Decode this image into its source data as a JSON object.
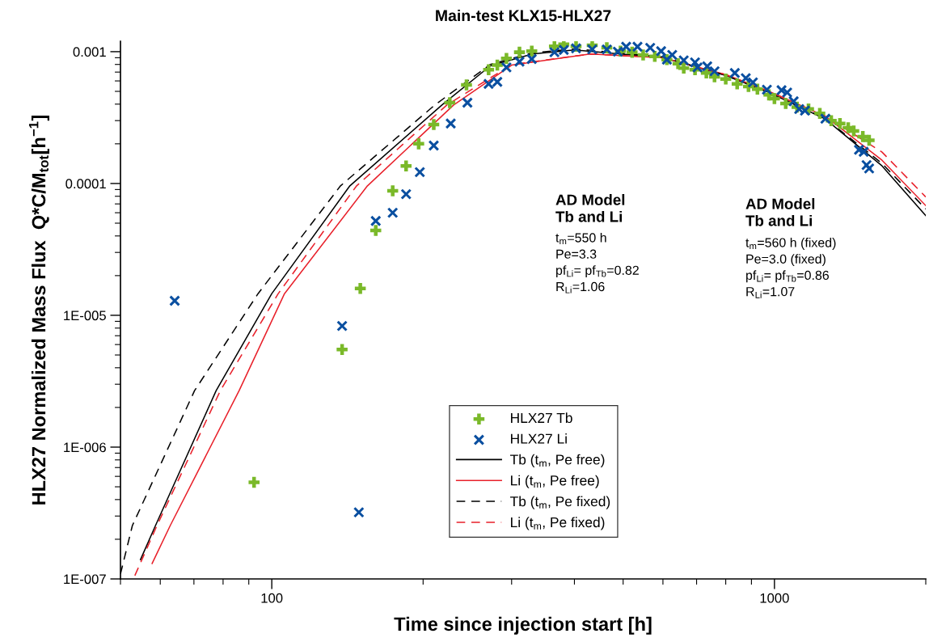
{
  "chart_data": {
    "type": "scatter",
    "title": "Main-test KLX15-HLX27",
    "xlabel": "Time since injection start [h]",
    "ylabel": "HLX27 Normalized Mass Flux  Q*C/M$_{tot}$[h$^{−1}$]",
    "log": "xy",
    "grid": false,
    "legend": "bottom",
    "xlim": [
      50,
      2000
    ],
    "xticks": [
      100,
      1000
    ],
    "ylim": [
      1e-07,
      0.0012
    ],
    "yticks": [
      {
        "value": 1e-07,
        "label": "1E-007"
      },
      {
        "value": 1e-06,
        "label": "1E-006"
      },
      {
        "value": 1e-05,
        "label": "1E-005"
      },
      {
        "value": 0.0001,
        "label": "0.0001"
      },
      {
        "value": 0.001,
        "label": "0.001"
      }
    ],
    "annotations": [
      "AD Model\nTb and Li",
      "t$_{m}$=550 h\nPe=3.3\npf$_{Li}$= pf$_{Tb}$=0.82\nR$_{Li}$=1.06",
      "AD Model\nTb and Li",
      "t$_{m}$=560 h (fixed)\nPe=3.0 (fixed)\npf$_{Li}$= pf$_{Tb}$=0.86\nR$_{Li}$=1.07"
    ],
    "series": [
      {
        "name": "HLX27 Tb",
        "marker": "plus",
        "color": "#7ab929",
        "x": [
          92.2,
          138,
          150,
          161,
          174,
          185,
          196,
          210,
          226,
          244,
          270,
          281,
          293,
          311,
          329,
          365,
          381,
          403,
          434,
          464,
          494,
          521,
          548,
          578,
          611,
          643,
          660,
          695,
          732,
          760,
          800,
          843,
          888,
          925,
          975,
          1000,
          1053,
          1109,
          1169,
          1231,
          1297,
          1350,
          1402,
          1438,
          1499,
          1543
        ],
        "values": [
          5.4e-07,
          5.5e-06,
          1.6e-05,
          4.4e-05,
          8.8e-05,
          0.000136,
          0.0002,
          0.00028,
          0.00041,
          0.00056,
          0.00073,
          0.00079,
          0.00089,
          0.00099,
          0.00101,
          0.0011,
          0.00114,
          0.0011,
          0.00112,
          0.00107,
          0.00101,
          0.00099,
          0.000945,
          0.00092,
          0.00087,
          0.00081,
          0.00075,
          0.00073,
          0.00069,
          0.000645,
          0.00062,
          0.00057,
          0.000545,
          0.00052,
          0.00047,
          0.00044,
          0.000405,
          0.00038,
          0.000367,
          0.00034,
          0.0003,
          0.000285,
          0.000265,
          0.00025,
          0.000227,
          0.000213
        ]
      },
      {
        "name": "HLX27 Li",
        "marker": "cross",
        "color": "#0a4fa0",
        "x": [
          64.1,
          138,
          149,
          161,
          174,
          185,
          197,
          210,
          227,
          245,
          270,
          281,
          293,
          311,
          329,
          365,
          381,
          403,
          434,
          464,
          488,
          507,
          534,
          566,
          595,
          611,
          626,
          660,
          695,
          703,
          735,
          760,
          834,
          877,
          906,
          966,
          1033,
          1060,
          1092,
          1120,
          1150,
          1263,
          1473,
          1505,
          1525,
          1543
        ],
        "values": [
          1.29e-05,
          8.3e-06,
          3.2e-07,
          5.2e-05,
          6e-05,
          8.3e-05,
          0.000122,
          0.000194,
          0.000285,
          0.00041,
          0.00057,
          0.00059,
          0.00076,
          0.00084,
          0.00088,
          0.00099,
          0.00103,
          0.00106,
          0.00104,
          0.00104,
          0.001,
          0.00109,
          0.00109,
          0.00107,
          0.00101,
          0.00087,
          0.000945,
          0.00086,
          0.00083,
          0.00076,
          0.000775,
          0.00071,
          0.00069,
          0.00063,
          0.000585,
          0.000515,
          0.00051,
          0.00049,
          0.00042,
          0.000367,
          0.000357,
          0.00031,
          0.00018,
          0.000174,
          0.000138,
          0.00013
        ]
      },
      {
        "name": "Tb (t$_{m}$, Pe free)",
        "type": "line",
        "line_style": "solid",
        "color": "#000000",
        "x": [
          54.8,
          58.7,
          77.5,
          100,
          143,
          218,
          272,
          330,
          400,
          600,
          800,
          975,
          1263,
          1637,
          2000
        ],
        "values": [
          1.4e-07,
          2.54e-07,
          2.68e-06,
          1.46e-05,
          9.6e-05,
          0.000394,
          0.00078,
          0.00096,
          0.00103,
          0.0009,
          0.00066,
          0.00049,
          0.000308,
          0.000136,
          5.7e-05
        ]
      },
      {
        "name": "Li (t$_{m}$, Pe free)",
        "type": "line",
        "line_style": "solid",
        "color": "#e8202a",
        "x": [
          57.8,
          62.8,
          86.1,
          106,
          155,
          230,
          300,
          430,
          600,
          800,
          975,
          1263,
          1637,
          2000
        ],
        "values": [
          1.31e-07,
          2.54e-07,
          2.68e-06,
          1.46e-05,
          9.6e-05,
          0.000394,
          0.00079,
          0.00096,
          0.0009,
          0.00067,
          0.0005,
          0.000323,
          0.00015,
          6.8e-05
        ]
      },
      {
        "name": "Tb (t$_{m}$, Pe fixed)",
        "type": "line",
        "line_style": "dashed",
        "color": "#000000",
        "x": [
          50,
          52.8,
          70.2,
          93.9,
          137,
          211,
          272,
          330,
          400,
          600,
          800,
          975,
          1263,
          1637,
          2000
        ],
        "values": [
          1.09e-07,
          2.54e-07,
          2.68e-06,
          1.46e-05,
          9.6e-05,
          0.000394,
          0.0008,
          0.00098,
          0.00105,
          0.00091,
          0.00066,
          0.00049,
          0.00031,
          0.000142,
          6.4e-05
        ]
      },
      {
        "name": "Li (t$_{m}$, Pe fixed)",
        "type": "line",
        "line_style": "dashed",
        "color": "#e8202a",
        "x": [
          53.4,
          59.1,
          79,
          103,
          147.5,
          223,
          300,
          430,
          600,
          800,
          975,
          1263,
          1637,
          2000
        ],
        "values": [
          1.06e-07,
          2.54e-07,
          2.68e-06,
          1.46e-05,
          9.6e-05,
          0.000394,
          0.000798,
          0.00096,
          0.0009,
          0.00067,
          0.0005,
          0.000325,
          0.000173,
          7.9e-05
        ]
      }
    ]
  }
}
